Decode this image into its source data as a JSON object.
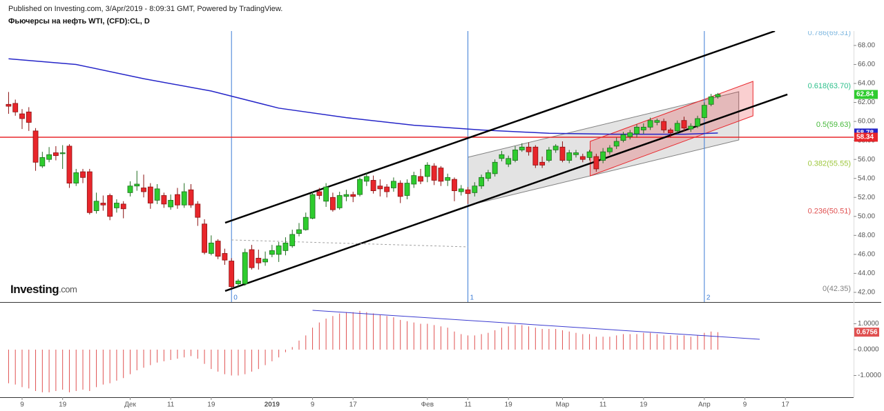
{
  "header": {
    "published": "Published on Investing.com, 3/Apr/2019 - 8:09:31 GMT, Powered by TradingView.",
    "symbol": "Фьючерсы на нефть WTI, (CFD):CL, D",
    "logo": [
      "Investing",
      ".com"
    ]
  },
  "chart_data": [
    {
      "type": "candlestick",
      "x": [
        0,
        1,
        2,
        3,
        4,
        5,
        6,
        7,
        8,
        9,
        10,
        11,
        12,
        13,
        14,
        15,
        16,
        17,
        18,
        19,
        20,
        21,
        22,
        23,
        24,
        25,
        26,
        27,
        28,
        29,
        30,
        31,
        32,
        33,
        34,
        35,
        36,
        37,
        38,
        39,
        40,
        41,
        42,
        43,
        44,
        45,
        46,
        47,
        48,
        49,
        50,
        51,
        52,
        53,
        54,
        55,
        56,
        57,
        58,
        59,
        60,
        61,
        62,
        63,
        64,
        65,
        66,
        67,
        68,
        69,
        70,
        71,
        72,
        73,
        74,
        75,
        76,
        77,
        78,
        79,
        80,
        81,
        82,
        83,
        84,
        85,
        86,
        87,
        88,
        89,
        90,
        91,
        92,
        93,
        94,
        95,
        96,
        97,
        98,
        99,
        100,
        101,
        102,
        103,
        104,
        105
      ],
      "open": [
        61.8,
        61.9,
        60.8,
        61.0,
        59.0,
        55.3,
        56.0,
        56.7,
        56.6,
        57.4,
        53.5,
        54.7,
        54.7,
        50.6,
        51.4,
        52.2,
        50.9,
        51.3,
        52.5,
        53.2,
        53.0,
        53.1,
        51.7,
        52.2,
        51.0,
        52.3,
        51.2,
        52.8,
        51.3,
        49.2,
        46.1,
        47.4,
        46.1,
        45.3,
        42.9,
        42.9,
        46.5,
        45.6,
        45.2,
        46.0,
        46.0,
        46.4,
        46.9,
        48.2,
        48.6,
        49.8,
        52.6,
        51.6,
        52.0,
        50.9,
        52.1,
        52.3,
        52.3,
        53.7,
        53.8,
        53.2,
        53.1,
        53.0,
        53.5,
        52.2,
        53.4,
        54.2,
        54.2,
        55.3,
        55.1,
        53.8,
        53.9,
        52.6,
        52.8,
        52.5,
        53.2,
        54.0,
        54.5,
        56.1,
        55.5,
        55.9,
        57.0,
        57.3,
        57.3,
        55.7,
        55.9,
        57.0,
        57.3,
        55.9,
        56.5,
        56.3,
        56.2,
        56.3,
        55.9,
        56.8,
        57.4,
        58.0,
        58.4,
        58.7,
        59.1,
        59.4,
        59.9,
        60.0,
        59.1,
        59.0,
        60.1,
        59.2,
        59.5,
        60.4,
        61.8,
        62.6
      ],
      "high": [
        63.1,
        62.3,
        61.3,
        61.5,
        59.3,
        56.8,
        57.3,
        57.4,
        57.5,
        57.6,
        55.0,
        55.0,
        55.0,
        52.5,
        52.2,
        52.4,
        51.8,
        51.6,
        53.7,
        54.8,
        54.4,
        53.5,
        53.4,
        52.5,
        52.3,
        53.0,
        53.5,
        53.4,
        51.6,
        49.7,
        48.0,
        47.6,
        46.6,
        45.6,
        43.4,
        46.6,
        47.0,
        46.5,
        46.3,
        47.0,
        47.3,
        47.8,
        48.6,
        49.3,
        50.4,
        52.6,
        53.0,
        53.5,
        52.5,
        52.6,
        52.8,
        52.6,
        54.1,
        54.6,
        54.3,
        53.9,
        53.4,
        54.1,
        53.8,
        53.9,
        54.7,
        55.0,
        55.7,
        55.6,
        55.3,
        54.5,
        54.1,
        53.3,
        53.1,
        53.6,
        54.4,
        54.9,
        56.0,
        56.9,
        56.4,
        57.4,
        57.7,
        57.8,
        57.5,
        56.3,
        57.3,
        57.6,
        57.9,
        57.0,
        57.0,
        56.6,
        57.0,
        56.6,
        57.2,
        57.5,
        58.3,
        58.9,
        59.1,
        59.7,
        59.8,
        60.4,
        60.3,
        60.3,
        59.3,
        60.1,
        60.5,
        59.8,
        60.6,
        62.0,
        62.9,
        63.0
      ],
      "low": [
        60.8,
        60.6,
        59.2,
        59.0,
        54.8,
        55.1,
        55.7,
        55.9,
        55.0,
        53.0,
        53.2,
        53.5,
        50.2,
        50.3,
        50.6,
        49.6,
        50.4,
        49.8,
        52.1,
        52.7,
        52.0,
        50.8,
        51.3,
        50.9,
        50.7,
        50.8,
        50.9,
        50.9,
        49.0,
        46.0,
        45.9,
        45.5,
        44.9,
        42.4,
        42.6,
        42.7,
        44.4,
        44.4,
        44.8,
        45.7,
        45.2,
        45.9,
        46.7,
        47.9,
        48.5,
        49.7,
        51.8,
        51.0,
        50.5,
        50.7,
        51.6,
        51.5,
        52.1,
        53.2,
        52.4,
        52.1,
        52.0,
        52.6,
        51.4,
        51.8,
        53.0,
        53.4,
        53.6,
        53.3,
        53.2,
        53.2,
        51.6,
        52.2,
        51.3,
        52.1,
        52.9,
        53.7,
        54.2,
        55.8,
        55.2,
        55.7,
        56.8,
        56.4,
        55.1,
        55.1,
        55.7,
        56.7,
        55.7,
        55.6,
        56.2,
        55.7,
        55.9,
        54.7,
        55.6,
        56.5,
        57.1,
        57.8,
        58.1,
        58.3,
        58.7,
        59.1,
        59.6,
        58.8,
        58.3,
        58.7,
        59.0,
        58.9,
        59.3,
        60.3,
        61.6,
        62.4
      ],
      "close": [
        61.6,
        61.0,
        60.3,
        59.9,
        55.7,
        56.2,
        56.5,
        56.4,
        56.7,
        53.5,
        54.6,
        54.1,
        50.4,
        51.6,
        51.2,
        50.0,
        51.4,
        50.8,
        53.2,
        53.4,
        52.6,
        51.4,
        52.9,
        51.3,
        51.7,
        51.2,
        52.6,
        51.2,
        49.9,
        46.2,
        47.2,
        45.8,
        45.4,
        42.6,
        43.2,
        46.2,
        44.6,
        45.1,
        45.5,
        46.4,
        46.9,
        47.2,
        48.1,
        48.6,
        49.9,
        52.3,
        52.2,
        53.1,
        50.7,
        52.2,
        52.3,
        52.1,
        53.9,
        54.2,
        52.7,
        52.9,
        52.6,
        53.7,
        52.1,
        53.5,
        54.3,
        53.7,
        55.4,
        53.8,
        53.7,
        54.1,
        52.7,
        52.9,
        52.4,
        53.2,
        54.1,
        54.6,
        55.7,
        56.5,
        56.1,
        57.0,
        57.3,
        56.8,
        55.4,
        55.4,
        57.0,
        57.4,
        55.9,
        56.7,
        56.7,
        56.0,
        56.8,
        55.0,
        56.8,
        57.2,
        57.9,
        58.6,
        58.8,
        59.4,
        59.4,
        60.1,
        60.1,
        59.1,
        58.8,
        59.8,
        59.3,
        59.5,
        60.3,
        61.7,
        62.6,
        62.84
      ],
      "up_color": "#2ecc2e",
      "down_color": "#e8262b",
      "xlim": [
        -1.27,
        125.1
      ],
      "ylim": [
        40.98,
        69.52
      ],
      "yticks": [
        {
          "value": 42,
          "label": "42.00"
        },
        {
          "value": 44,
          "label": "44.00"
        },
        {
          "value": 46,
          "label": "46.00"
        },
        {
          "value": 48,
          "label": "48.00"
        },
        {
          "value": 50,
          "label": "50.00"
        },
        {
          "value": 52,
          "label": "52.00"
        },
        {
          "value": 54,
          "label": "54.00"
        },
        {
          "value": 56,
          "label": "56.00"
        },
        {
          "value": 58,
          "label": "58.00"
        },
        {
          "value": 60,
          "label": "60.00"
        },
        {
          "value": 62,
          "label": "62.00"
        },
        {
          "value": 64,
          "label": "64.00"
        },
        {
          "value": 66,
          "label": "66.00"
        },
        {
          "value": 68,
          "label": "68.00"
        }
      ],
      "ma": {
        "x": [
          0,
          10,
          20,
          30,
          40,
          50,
          60,
          70,
          80,
          90,
          100,
          105
        ],
        "values": [
          66.6,
          66.0,
          64.5,
          63.2,
          61.4,
          60.4,
          59.6,
          59.1,
          58.75,
          58.65,
          58.65,
          58.78
        ],
        "color": "#2424c8"
      },
      "hline": {
        "value": 58.34,
        "color": "#e8262b"
      },
      "channels": [
        {
          "x": [
            68,
            108.1
          ],
          "top": [
            56.23,
            63.13
          ],
          "bottom": [
            51.15,
            58.05
          ],
          "color": "#808080"
        },
        {
          "x": [
            86.1,
            110.2
          ],
          "top": [
            57.9,
            64.22
          ],
          "bottom": [
            54.27,
            60.59
          ],
          "color": "#e8262b"
        }
      ],
      "trend_lines": [
        {
          "x": [
            32.06,
            113.45
          ],
          "y": [
            49.33,
            69.52
          ],
          "color": "#000000"
        },
        {
          "x": [
            32.06,
            115.3
          ],
          "y": [
            42.15,
            62.84
          ],
          "color": "#000000"
        },
        {
          "x": [
            33,
            68
          ],
          "y": [
            47.52,
            46.79
          ],
          "color": "#a0a0a0",
          "dashed": true
        }
      ],
      "time_zones": [
        {
          "x": 33,
          "label": "0"
        },
        {
          "x": 68,
          "label": "1"
        },
        {
          "x": 103,
          "label": "2"
        }
      ],
      "time_zone_color": "#3a7bd5",
      "fib_levels": [
        {
          "label": "0.786(69.31)",
          "value": 69.31,
          "color": "#7fb8e0"
        },
        {
          "label": "0.618(63.70)",
          "value": 63.7,
          "color": "#2bbf8a"
        },
        {
          "label": "0.5(59.63)",
          "value": 59.63,
          "color": "#45b83a"
        },
        {
          "label": "0.382(55.55)",
          "value": 55.55,
          "color": "#9cc63a"
        },
        {
          "label": "0.236(50.51)",
          "value": 50.51,
          "color": "#e05050"
        },
        {
          "label": "0(42.35)",
          "value": 42.35,
          "color": "#808080"
        }
      ]
    },
    {
      "type": "bar",
      "x": [
        0,
        1,
        2,
        3,
        4,
        5,
        6,
        7,
        8,
        9,
        10,
        11,
        12,
        13,
        14,
        15,
        16,
        17,
        18,
        19,
        20,
        21,
        22,
        23,
        24,
        25,
        26,
        27,
        28,
        29,
        30,
        31,
        32,
        33,
        34,
        35,
        36,
        37,
        38,
        39,
        40,
        41,
        42,
        43,
        44,
        45,
        46,
        47,
        48,
        49,
        50,
        51,
        52,
        53,
        54,
        55,
        56,
        57,
        58,
        59,
        60,
        61,
        62,
        63,
        64,
        65,
        66,
        67,
        68,
        69,
        70,
        71,
        72,
        73,
        74,
        75,
        76,
        77,
        78,
        79,
        80,
        81,
        82,
        83,
        84,
        85,
        86,
        87,
        88,
        89,
        90,
        91,
        92,
        93,
        94,
        95,
        96,
        97,
        98,
        99,
        100,
        101,
        102,
        103,
        104,
        105
      ],
      "values": [
        -1.3,
        -1.35,
        -1.45,
        -1.5,
        -1.6,
        -1.65,
        -1.65,
        -1.6,
        -1.55,
        -1.65,
        -1.6,
        -1.55,
        -1.6,
        -1.45,
        -1.35,
        -1.3,
        -1.2,
        -1.1,
        -0.95,
        -0.8,
        -0.7,
        -0.6,
        -0.5,
        -0.45,
        -0.4,
        -0.35,
        -0.3,
        -0.25,
        -0.35,
        -0.55,
        -0.75,
        -0.85,
        -0.95,
        -1.0,
        -1.0,
        -0.95,
        -0.85,
        -0.75,
        -0.6,
        -0.45,
        -0.3,
        -0.1,
        0.1,
        0.35,
        0.55,
        0.85,
        1.05,
        1.2,
        1.3,
        1.4,
        1.45,
        1.45,
        1.5,
        1.45,
        1.4,
        1.35,
        1.3,
        1.25,
        1.15,
        1.1,
        1.05,
        1.0,
        1.0,
        0.95,
        0.9,
        0.85,
        0.7,
        0.6,
        0.55,
        0.55,
        0.6,
        0.65,
        0.75,
        0.85,
        0.9,
        0.95,
        0.95,
        0.9,
        0.85,
        0.8,
        0.8,
        0.8,
        0.75,
        0.7,
        0.65,
        0.6,
        0.6,
        0.5,
        0.5,
        0.5,
        0.55,
        0.6,
        0.6,
        0.6,
        0.65,
        0.65,
        0.6,
        0.55,
        0.55,
        0.55,
        0.55,
        0.5,
        0.55,
        0.65,
        0.7,
        0.6756
      ],
      "color": "#e05050",
      "xlim": [
        -1.27,
        125.1
      ],
      "ylim": [
        -1.813,
        1.787
      ],
      "yticks": [
        {
          "value": 1,
          "label": "1.0000"
        },
        {
          "value": 0,
          "label": "0.0000"
        },
        {
          "value": -1,
          "label": "-1.0000"
        }
      ],
      "xticks": [
        {
          "value": 2,
          "label": "9"
        },
        {
          "value": 8,
          "label": "19"
        },
        {
          "value": 18,
          "label": "Дек"
        },
        {
          "value": 24,
          "label": "11"
        },
        {
          "value": 30,
          "label": "19"
        },
        {
          "value": 39,
          "label": "2019"
        },
        {
          "value": 45,
          "label": "9"
        },
        {
          "value": 51,
          "label": "17"
        },
        {
          "value": 62,
          "label": "Фев"
        },
        {
          "value": 68,
          "label": "11"
        },
        {
          "value": 74,
          "label": "19"
        },
        {
          "value": 82,
          "label": "Мар"
        },
        {
          "value": 88,
          "label": "11"
        },
        {
          "value": 94,
          "label": "19"
        },
        {
          "value": 103,
          "label": "Апр"
        },
        {
          "value": 109,
          "label": "9"
        },
        {
          "value": 115,
          "label": "17"
        }
      ],
      "trend_line": {
        "x": [
          45,
          111.2
        ],
        "y": [
          1.52,
          0.4
        ],
        "color": "#3a3ad0"
      }
    }
  ]
}
